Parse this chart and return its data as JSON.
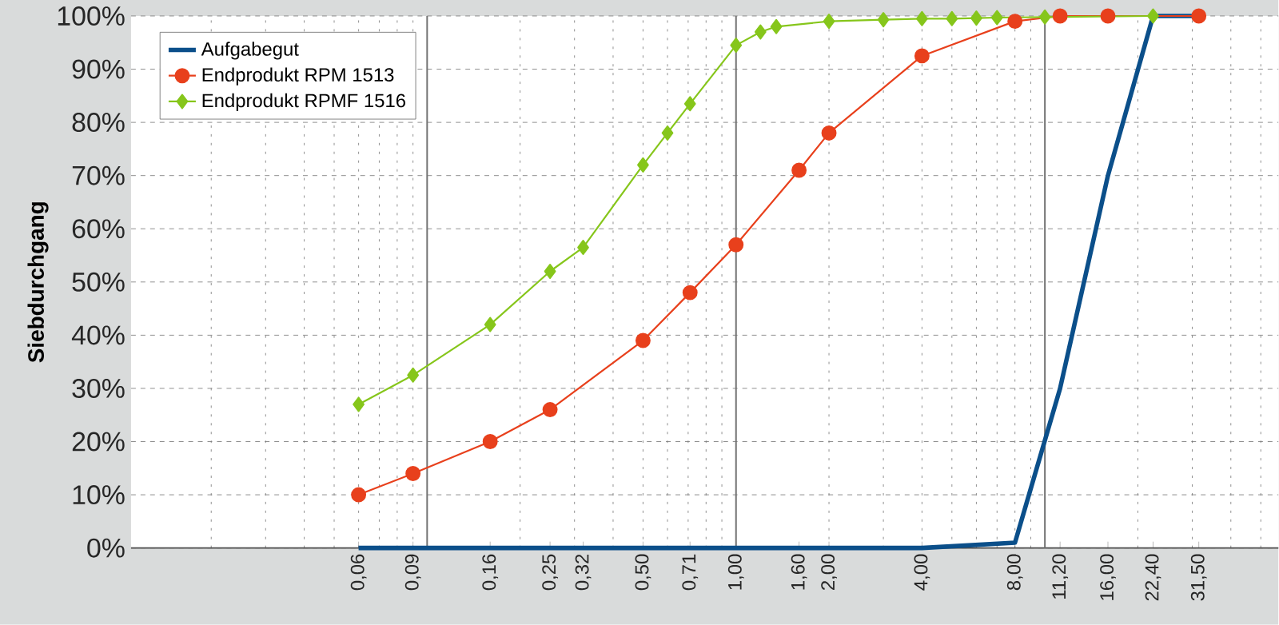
{
  "chart_data": {
    "type": "line",
    "ylabel": "Siebdurchgang",
    "log": "x",
    "grid": true,
    "legend": "top left",
    "xlim": [
      0.011,
      57
    ],
    "ylim": [
      0,
      100
    ],
    "xticks": [
      {
        "value": 0.06,
        "label": "0,06"
      },
      {
        "value": 0.09,
        "label": "0,09"
      },
      {
        "value": 0.16,
        "label": "0,16"
      },
      {
        "value": 0.25,
        "label": "0,25"
      },
      {
        "value": 0.32,
        "label": "0,32"
      },
      {
        "value": 0.5,
        "label": "0,50"
      },
      {
        "value": 0.71,
        "label": "0,71"
      },
      {
        "value": 1.0,
        "label": "1,00"
      },
      {
        "value": 1.6,
        "label": "1,60"
      },
      {
        "value": 2.0,
        "label": "2,00"
      },
      {
        "value": 4.0,
        "label": "4,00"
      },
      {
        "value": 8.0,
        "label": "8,00"
      },
      {
        "value": 11.2,
        "label": "11,20"
      },
      {
        "value": 16.0,
        "label": "16,00"
      },
      {
        "value": 22.4,
        "label": "22,40"
      },
      {
        "value": 31.5,
        "label": "31,50"
      }
    ],
    "yticks": [
      {
        "value": 0,
        "label": "0%"
      },
      {
        "value": 10,
        "label": "10%"
      },
      {
        "value": 20,
        "label": "20%"
      },
      {
        "value": 30,
        "label": "30%"
      },
      {
        "value": 40,
        "label": "40%"
      },
      {
        "value": 50,
        "label": "50%"
      },
      {
        "value": 60,
        "label": "60%"
      },
      {
        "value": 70,
        "label": "70%"
      },
      {
        "value": 80,
        "label": "80%"
      },
      {
        "value": 90,
        "label": "90%"
      },
      {
        "value": 100,
        "label": "100%"
      }
    ],
    "series": [
      {
        "name": "Aufgabegut",
        "color": "#0b4f8a",
        "marker": "none",
        "x": [
          0.06,
          4.0,
          8.0,
          11.2,
          16.0,
          22.4,
          31.5
        ],
        "values": [
          0,
          0,
          1,
          30,
          70,
          100,
          100
        ]
      },
      {
        "name": "Endprodukt RPM 1513",
        "color": "#e8401c",
        "marker": "circle",
        "x": [
          0.06,
          0.09,
          0.16,
          0.25,
          0.5,
          0.71,
          1.0,
          1.6,
          2.0,
          4.0,
          8.0,
          11.2,
          16.0,
          31.5
        ],
        "values": [
          10,
          14,
          20,
          26,
          39,
          48,
          57,
          71,
          78,
          92.5,
          99,
          100,
          100,
          100
        ]
      },
      {
        "name": "Endprodukt RPMF 1516",
        "color": "#86c61b",
        "marker": "diamond",
        "x": [
          0.06,
          0.09,
          0.16,
          0.25,
          0.32,
          0.5,
          0.6,
          0.71,
          1.0,
          1.2,
          1.35,
          2.0,
          3.0,
          4.0,
          5.0,
          6.0,
          7.0,
          10.0,
          22.4
        ],
        "values": [
          27,
          32.5,
          42,
          52,
          56.5,
          72,
          78,
          83.5,
          94.5,
          97,
          98,
          99,
          99.3,
          99.5,
          99.5,
          99.6,
          99.7,
          99.8,
          100
        ]
      }
    ]
  }
}
